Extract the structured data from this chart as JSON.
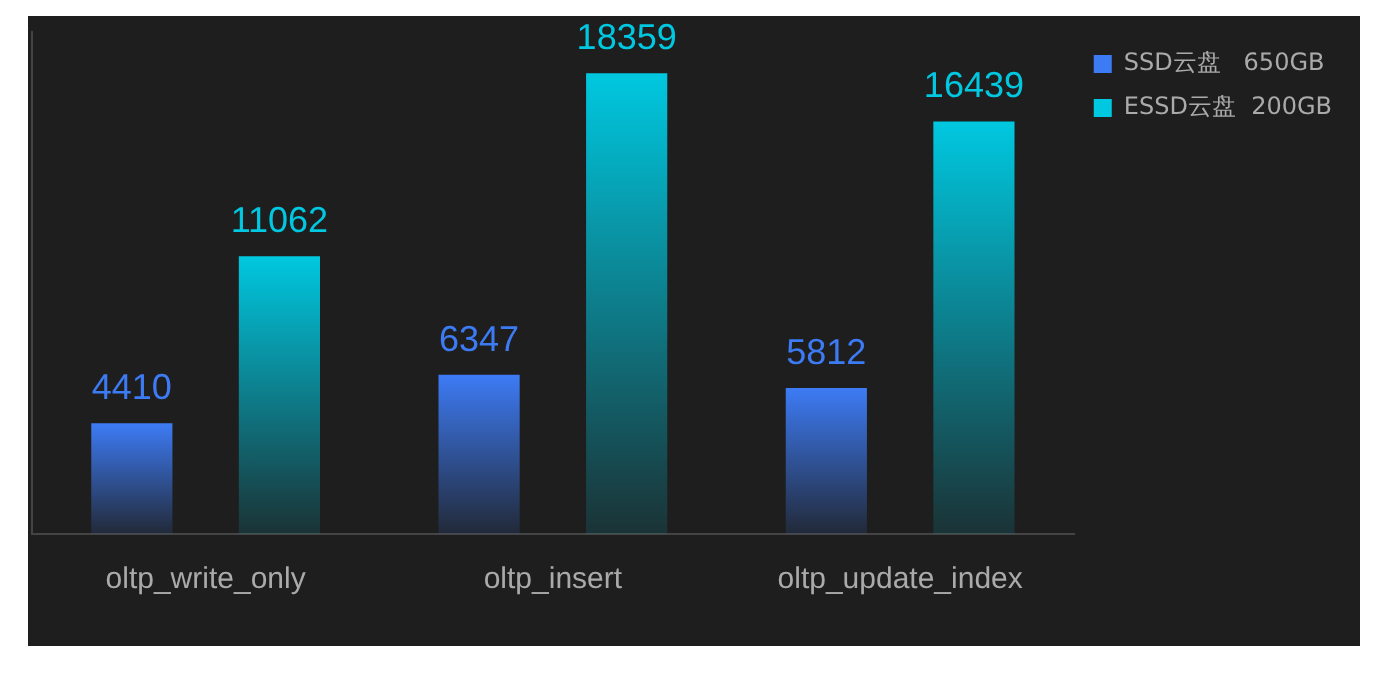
{
  "chart_data": {
    "type": "bar",
    "categories": [
      "oltp_write_only",
      "oltp_insert",
      "oltp_update_index"
    ],
    "series": [
      {
        "name": "SSD云盘   650GB",
        "color": "#3d7bf5",
        "values": [
          4410,
          6347,
          5812
        ]
      },
      {
        "name": "ESSD云盘  200GB",
        "color": "#00c8e0",
        "values": [
          11062,
          18359,
          16439
        ]
      }
    ],
    "data_labels": true,
    "grid": false,
    "legend": "top right",
    "tick_labels": "x"
  }
}
